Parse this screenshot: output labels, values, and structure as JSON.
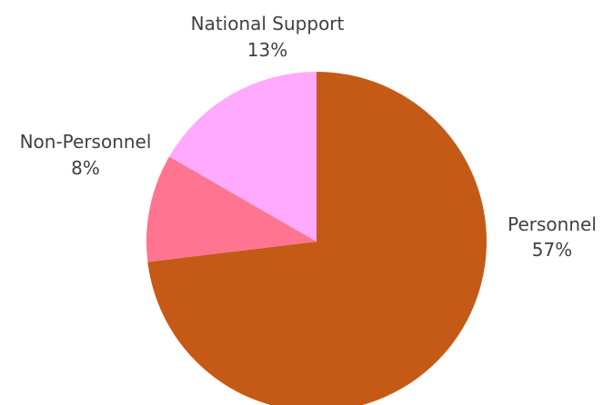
{
  "chart_data": {
    "type": "pie",
    "title": "",
    "start": "top",
    "direction": "clockwise",
    "slices": [
      {
        "label": "Personnel",
        "value": 57,
        "display": "57%",
        "color": "#c55a17"
      },
      {
        "label": "Non-Personnel",
        "value": 8,
        "display": "8%",
        "color": "#ff7490"
      },
      {
        "label": "National Support",
        "value": 13,
        "display": "13%",
        "color": "#ffaaff"
      }
    ]
  }
}
